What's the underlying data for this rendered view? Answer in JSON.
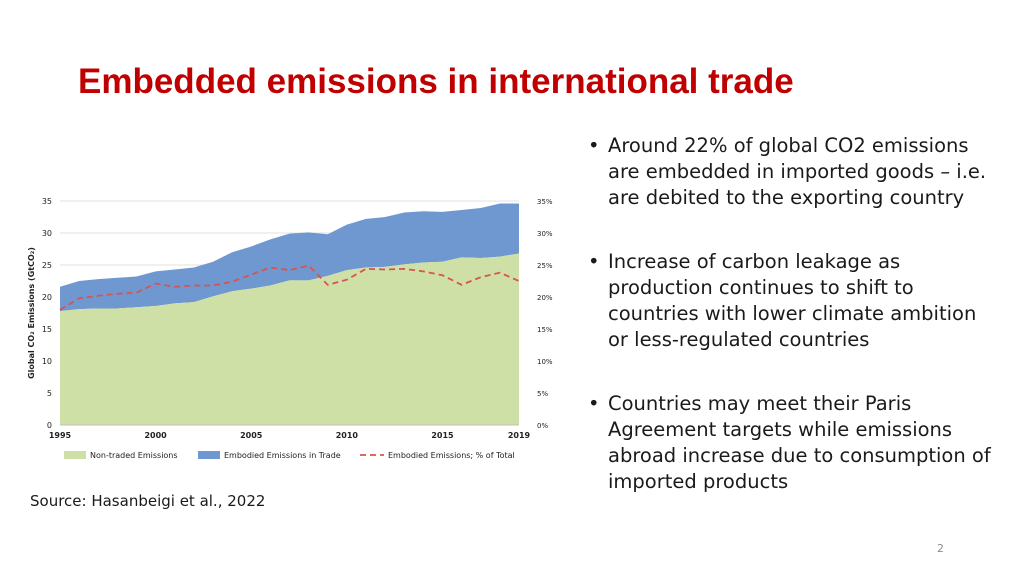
{
  "slide": {
    "title": "Embedded emissions in international trade",
    "bullets": [
      "Around 22% of global CO2 emissions are embedded in imported goods – i.e. are debited to the exporting country",
      "Increase of  carbon leakage as production continues to shift to countries with lower climate ambition or less-regulated countries",
      "Countries may meet their Paris Agreement targets while emissions abroad increase due to consumption of imported products"
    ],
    "bullet_symbol": "•",
    "source": "Source: Hasanbeigi et al., 2022",
    "page_number": "2"
  },
  "chart_data": {
    "type": "area",
    "title": "",
    "xlabel": "",
    "ylabel": "Global CO₂ Emissions (GtCO₂)",
    "x": [
      1995,
      1996,
      1997,
      1998,
      1999,
      2000,
      2001,
      2002,
      2003,
      2004,
      2005,
      2006,
      2007,
      2008,
      2009,
      2010,
      2011,
      2012,
      2013,
      2014,
      2015,
      2016,
      2017,
      2018,
      2019
    ],
    "x_ticks": [
      "1995",
      "2000",
      "2005",
      "2015",
      "2019"
    ],
    "x_tick_values": [
      1995,
      2000,
      2005,
      2015,
      2019
    ],
    "x_tick_extra": {
      "label": "2010",
      "value": 2010
    },
    "ylim": [
      0,
      35
    ],
    "y_ticks": [
      "0",
      "5",
      "10",
      "15",
      "20",
      "25",
      "30",
      "35"
    ],
    "y2lim": [
      0,
      35
    ],
    "y2_ticks": [
      "0%",
      "5%",
      "10%",
      "15%",
      "20%",
      "25%",
      "30%",
      "35%"
    ],
    "grid": true,
    "legend_position": "bottom",
    "series": [
      {
        "name": "Non-traded Emissions",
        "kind": "area",
        "color": "#cfe0a6",
        "values": [
          17.8,
          18.1,
          18.2,
          18.2,
          18.4,
          18.6,
          19.0,
          19.2,
          20.1,
          20.9,
          21.3,
          21.8,
          22.6,
          22.6,
          23.3,
          24.2,
          24.6,
          24.7,
          25.1,
          25.4,
          25.5,
          26.2,
          26.1,
          26.3,
          26.8
        ]
      },
      {
        "name": "Embodied Emissions in Trade",
        "kind": "stacked-area",
        "color": "#6f98d1",
        "values": [
          3.8,
          4.4,
          4.6,
          4.8,
          4.8,
          5.4,
          5.3,
          5.4,
          5.4,
          6.1,
          6.6,
          7.2,
          7.3,
          7.5,
          6.5,
          7.1,
          7.6,
          7.8,
          8.1,
          8.0,
          7.8,
          7.4,
          7.8,
          8.3,
          7.8
        ]
      },
      {
        "name": "Embodied Emissions; % of Total",
        "kind": "line-secondary",
        "color": "#d9534f",
        "values": [
          18.0,
          19.8,
          20.2,
          20.5,
          20.7,
          22.1,
          21.6,
          21.8,
          21.8,
          22.4,
          23.5,
          24.6,
          24.2,
          24.9,
          21.9,
          22.7,
          24.4,
          24.3,
          24.4,
          24.0,
          23.4,
          21.9,
          23.1,
          23.8,
          22.5
        ]
      }
    ]
  }
}
